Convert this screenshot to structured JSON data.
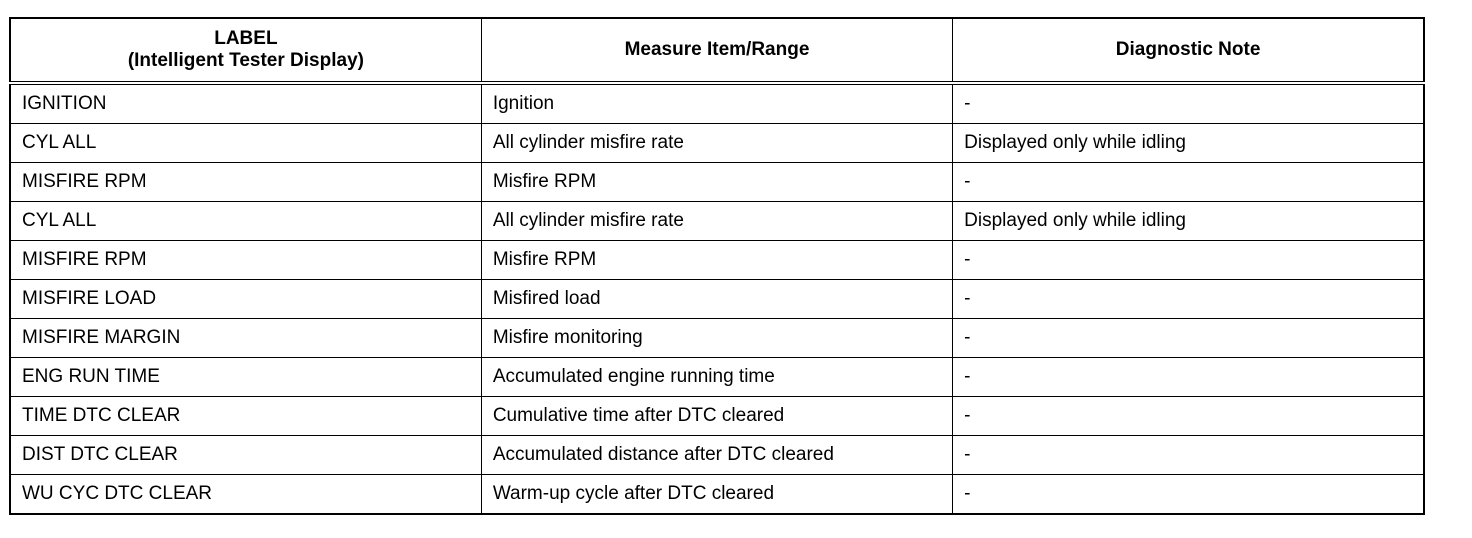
{
  "table": {
    "headers": [
      {
        "line1": "LABEL",
        "line2": "(Intelligent Tester Display)"
      },
      {
        "line1": "Measure Item/Range",
        "line2": ""
      },
      {
        "line1": "Diagnostic Note",
        "line2": ""
      }
    ],
    "rows": [
      [
        "IGNITION",
        "Ignition",
        "-"
      ],
      [
        "CYL ALL",
        "All cylinder misfire rate",
        "Displayed only while idling"
      ],
      [
        "MISFIRE RPM",
        "Misfire RPM",
        "-"
      ],
      [
        "CYL ALL",
        "All cylinder misfire rate",
        "Displayed only while idling"
      ],
      [
        "MISFIRE RPM",
        "Misfire RPM",
        "-"
      ],
      [
        "MISFIRE LOAD",
        "Misfired load",
        "-"
      ],
      [
        "MISFIRE MARGIN",
        "Misfire monitoring",
        "-"
      ],
      [
        "ENG RUN TIME",
        "Accumulated engine running time",
        "-"
      ],
      [
        "TIME DTC CLEAR",
        "Cumulative time after DTC cleared",
        "-"
      ],
      [
        "DIST DTC CLEAR",
        "Accumulated distance after DTC cleared",
        "-"
      ],
      [
        "WU CYC DTC CLEAR",
        "Warm-up cycle after DTC cleared",
        "-"
      ]
    ]
  }
}
